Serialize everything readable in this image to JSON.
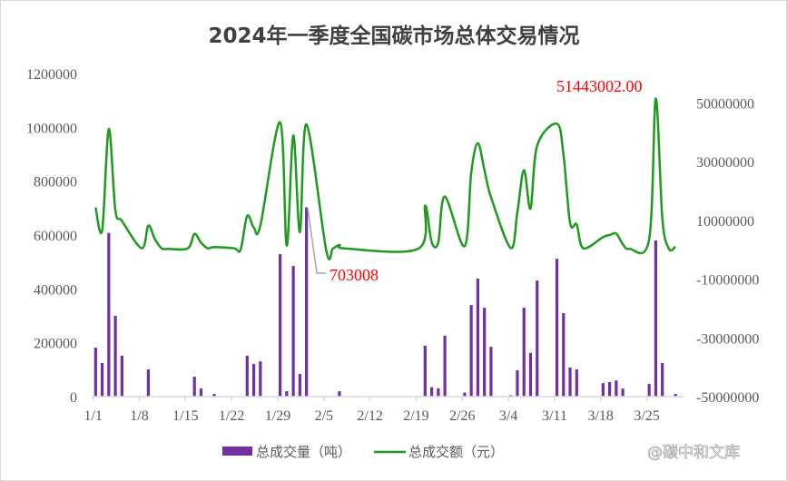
{
  "chart_data": {
    "type": "bar+line",
    "title": "2024年一季度全国碳市场总体交易情况",
    "x_tick_labels": [
      "1/1",
      "1/8",
      "1/15",
      "1/22",
      "1/29",
      "2/5",
      "2/12",
      "2/19",
      "2/26",
      "3/4",
      "3/11",
      "3/18",
      "3/25"
    ],
    "left_axis": {
      "ylim": [
        0,
        1200000
      ],
      "ticks": [
        "0",
        "200000",
        "400000",
        "600000",
        "800000",
        "1000000",
        "1200000"
      ]
    },
    "right_axis": {
      "ylim": [
        -50000000,
        60000000
      ],
      "ticks": [
        "-50000000",
        "-30000000",
        "-10000000",
        "10000000",
        "30000000",
        "50000000"
      ]
    },
    "dates": [
      "1/1",
      "1/2",
      "1/3",
      "1/4",
      "1/5",
      "1/8",
      "1/9",
      "1/10",
      "1/11",
      "1/12",
      "1/15",
      "1/16",
      "1/17",
      "1/18",
      "1/19",
      "1/22",
      "1/23",
      "1/24",
      "1/25",
      "1/26",
      "1/29",
      "1/30",
      "1/31",
      "2/1",
      "2/2",
      "2/5",
      "2/6",
      "2/7",
      "2/8",
      "2/19",
      "2/20",
      "2/21",
      "2/22",
      "2/23",
      "2/26",
      "2/27",
      "2/28",
      "2/29",
      "3/1",
      "3/4",
      "3/5",
      "3/6",
      "3/7",
      "3/8",
      "3/11",
      "3/12",
      "3/13",
      "3/14",
      "3/15",
      "3/18",
      "3/19",
      "3/20",
      "3/21",
      "3/22",
      "3/25",
      "3/26",
      "3/27",
      "3/28",
      "3/29"
    ],
    "series": [
      {
        "name": "总成交量（吨）",
        "type": "bar",
        "axis": "left",
        "color": "#7030a0",
        "values": [
          182000,
          125000,
          608000,
          300000,
          152000,
          0,
          101000,
          0,
          0,
          0,
          0,
          74000,
          30000,
          0,
          10000,
          0,
          0,
          152000,
          121000,
          131000,
          529000,
          20000,
          485000,
          84000,
          703008,
          0,
          0,
          20000,
          0,
          0,
          189000,
          35000,
          31000,
          226000,
          15000,
          340000,
          438000,
          330000,
          185000,
          5000,
          98000,
          330000,
          162000,
          431000,
          512000,
          310000,
          108000,
          101000,
          0,
          50000,
          54000,
          60000,
          30000,
          0,
          47000,
          580000,
          125000,
          0,
          10000
        ]
      },
      {
        "name": "总成交额（元）",
        "type": "line",
        "axis": "right",
        "color": "#1e9a1e",
        "values": [
          14400000,
          6700000,
          41100000,
          13500000,
          9800000,
          500000,
          8200000,
          3600000,
          500000,
          300000,
          500000,
          5400000,
          2400000,
          500000,
          900000,
          500000,
          0,
          11500000,
          7600000,
          8200000,
          43400000,
          1400000,
          38900000,
          6000000,
          42700000,
          -200000,
          400000,
          1600000,
          400000,
          400000,
          15000000,
          2600000,
          2500000,
          18100000,
          1200000,
          26200000,
          36300000,
          27200000,
          17900000,
          600000,
          12800000,
          27100000,
          14000000,
          35400000,
          42900000,
          32300000,
          9100000,
          8600000,
          500000,
          4300000,
          5000000,
          5500000,
          1900000,
          300000,
          3600000,
          51443002,
          10700000,
          300000,
          1100000
        ]
      }
    ],
    "annotations": [
      {
        "date": "2/2",
        "series": "总成交量（吨）",
        "text": "703008"
      },
      {
        "date": "3/26",
        "series": "总成交额（元）",
        "text": "51443002.00"
      }
    ],
    "legend": "bottom",
    "grid": false
  },
  "watermark": "@碳中和文库"
}
